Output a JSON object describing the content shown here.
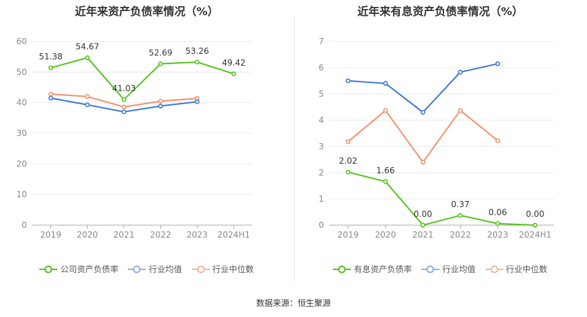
{
  "footer": {
    "source": "数据来源：恒生聚源"
  },
  "colors": {
    "company": "#52c41a",
    "mean": "#3a75d8",
    "median": "#f0906a",
    "grid": "#e8e8e8",
    "axis": "#888888"
  },
  "chart_data": [
    {
      "type": "line",
      "title": "近年来资产负债率情况（%）",
      "categories": [
        "2019",
        "2020",
        "2021",
        "2022",
        "2023",
        "2024H1"
      ],
      "ylim": [
        0,
        60
      ],
      "yticks": [
        0,
        10,
        20,
        30,
        40,
        50,
        60
      ],
      "grid": true,
      "legend_position": "bottom",
      "series": [
        {
          "name": "公司资产负债率",
          "key": "company",
          "values": [
            51.38,
            54.67,
            41.03,
            52.69,
            53.26,
            49.42
          ],
          "labels": [
            "51.38",
            "54.67",
            "41.03",
            "52.69",
            "53.26",
            "49.42"
          ]
        },
        {
          "name": "行业均值",
          "key": "mean",
          "values": [
            41.5,
            39.3,
            37.0,
            38.9,
            40.3,
            null
          ]
        },
        {
          "name": "行业中位数",
          "key": "median",
          "values": [
            42.8,
            42.0,
            38.6,
            40.5,
            41.4,
            null
          ]
        }
      ]
    },
    {
      "type": "line",
      "title": "近年来有息资产负债率情况（%）",
      "categories": [
        "2019",
        "2020",
        "2021",
        "2022",
        "2023",
        "2024H1"
      ],
      "ylim": [
        0,
        7
      ],
      "yticks": [
        0,
        1,
        2,
        3,
        4,
        5,
        6,
        7
      ],
      "grid": true,
      "legend_position": "bottom",
      "series": [
        {
          "name": "有息资产负债率",
          "key": "company",
          "values": [
            2.02,
            1.66,
            0.0,
            0.37,
            0.06,
            0.0
          ],
          "labels": [
            "2.02",
            "1.66",
            "0.00",
            "0.37",
            "0.06",
            "0.00"
          ]
        },
        {
          "name": "行业均值",
          "key": "mean",
          "values": [
            5.5,
            5.4,
            4.3,
            5.83,
            6.15,
            null
          ]
        },
        {
          "name": "行业中位数",
          "key": "median",
          "values": [
            3.18,
            4.37,
            2.4,
            4.37,
            3.22,
            null
          ]
        }
      ]
    }
  ]
}
